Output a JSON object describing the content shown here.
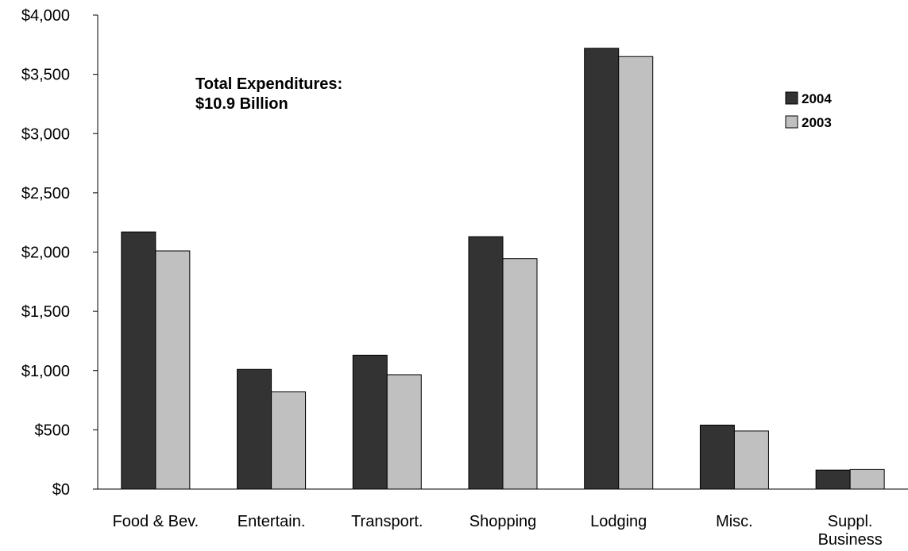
{
  "chart_data": {
    "type": "bar",
    "categories": [
      [
        "Food & Bev."
      ],
      [
        "Entertain."
      ],
      [
        "Transport."
      ],
      [
        "Shopping"
      ],
      [
        "Lodging"
      ],
      [
        "Misc."
      ],
      [
        "Suppl.",
        "Business"
      ]
    ],
    "series": [
      {
        "name": "2004",
        "color": "#333333",
        "values": [
          2170,
          1010,
          1130,
          2130,
          3720,
          540,
          160
        ]
      },
      {
        "name": "2003",
        "color": "#c0c0c0",
        "values": [
          2010,
          820,
          965,
          1945,
          3650,
          490,
          165
        ]
      }
    ],
    "ylim": [
      0,
      4000
    ],
    "ytick_values": [
      0,
      500,
      1000,
      1500,
      2000,
      2500,
      3000,
      3500,
      4000
    ],
    "ytick_labels": [
      "$0",
      "$500",
      "$1,000",
      "$1,500",
      "$2,000",
      "$2,500",
      "$3,000",
      "$3,500",
      "$4,000"
    ],
    "annotation": [
      "Total Expenditures:",
      "$10.9 Billion"
    ],
    "legend_position": "top-right",
    "grid": false
  }
}
